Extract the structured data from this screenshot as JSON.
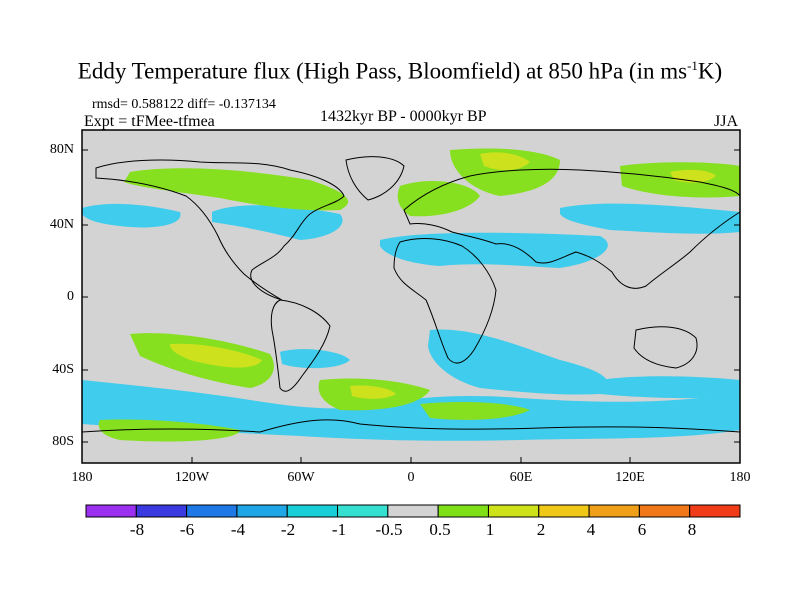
{
  "title_main": "Eddy Temperature flux (High Pass, Bloomfield) at 850 hPa (in ms",
  "title_sup": "-1",
  "title_unit_end": "K)",
  "stats": "rmsd= 0.588122 diff= -0.137134",
  "expt": "Expt = tFMee-tfmea",
  "period": "1432kyr BP - 0000kyr BP",
  "season": "JJA",
  "lat_labels": [
    "80N",
    "40N",
    "0",
    "40S",
    "80S"
  ],
  "lon_labels": [
    "180",
    "120W",
    "60W",
    "0",
    "60E",
    "120E",
    "180"
  ],
  "colorbar": {
    "labels": [
      "-8",
      "-6",
      "-4",
      "-2",
      "-1",
      "-0.5",
      "0.5",
      "1",
      "2",
      "4",
      "6",
      "8"
    ],
    "colors": [
      "#9b30f0",
      "#3a3ae0",
      "#1e78e6",
      "#1ea6e6",
      "#18cfd8",
      "#35e0d0",
      "#d3d3d3",
      "#7fe018",
      "#cde218",
      "#f0c818",
      "#f0a018",
      "#f07818",
      "#f03c18"
    ]
  },
  "colors": {
    "land_bg": "#d3d3d3",
    "coast": "#000000",
    "blue": "#35dcd8",
    "cyan": "#40ccec",
    "green": "#86e020",
    "yellow": "#cde21c"
  }
}
